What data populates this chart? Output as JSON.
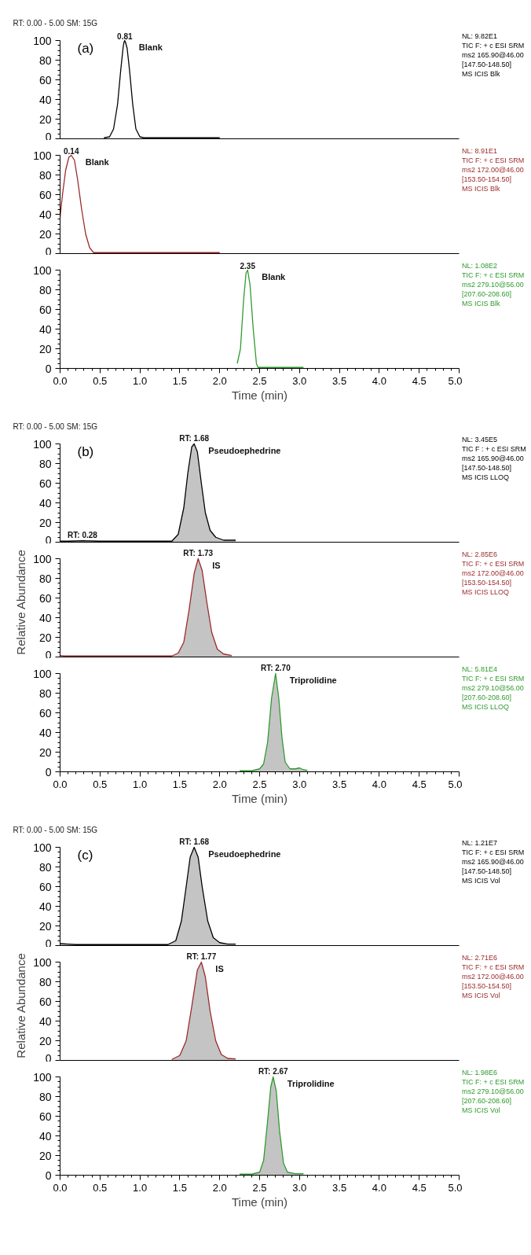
{
  "chart_data": [
    {
      "type": "line",
      "title": "RT: 0.00 - 5.00   SM: 15G",
      "subtitle": "(a)",
      "color": "#000000",
      "xlim": [
        0,
        5
      ],
      "ylim": [
        0,
        100
      ],
      "yticks": [
        0,
        20,
        40,
        60,
        80,
        100
      ],
      "tick_labels": "y",
      "x": [
        0.55,
        0.62,
        0.67,
        0.72,
        0.76,
        0.79,
        0.8,
        0.81,
        0.82,
        0.84,
        0.87,
        0.91,
        0.95,
        1.0,
        1.05,
        2.0
      ],
      "values": [
        1,
        2,
        10,
        35,
        70,
        93,
        98,
        100,
        98,
        92,
        70,
        35,
        10,
        2,
        1,
        1
      ],
      "annotations": [
        {
          "text": "0.81",
          "x": 0.81,
          "y": 100
        },
        "Blank",
        "NL: 9.82E1\nTIC F: + c ESI SRM\nms2 165.90@46.00\n[147.50-148.50]\nMS ICIS Blk"
      ]
    },
    {
      "type": "line",
      "color": "#9c2a2a",
      "xlim": [
        0,
        5
      ],
      "ylim": [
        0,
        100
      ],
      "yticks": [
        0,
        20,
        40,
        60,
        80,
        100
      ],
      "tick_labels": "y",
      "x": [
        0,
        0.03,
        0.07,
        0.11,
        0.14,
        0.18,
        0.22,
        0.27,
        0.32,
        0.37,
        0.42,
        2.0
      ],
      "values": [
        37,
        60,
        85,
        98,
        100,
        95,
        75,
        45,
        20,
        6,
        1,
        1
      ],
      "annotations": [
        {
          "text": "0.14",
          "x": 0.14,
          "y": 100
        },
        "Blank",
        "NL: 8.91E1\nTIC F: + c ESI SRM\nms2 172.00@46.00\n[153.50-154.50]\nMS ICIS Blk"
      ]
    },
    {
      "type": "line",
      "color": "#2e9b2e",
      "xlim": [
        0,
        5
      ],
      "ylim": [
        0,
        100
      ],
      "yticks": [
        0,
        20,
        40,
        60,
        80,
        100
      ],
      "xlabel": "Time (min)",
      "xticks": [
        {
          "value": 0,
          "label": "0.0"
        },
        {
          "value": 0.5,
          "label": "0.5"
        },
        {
          "value": 1,
          "label": "1.0"
        },
        {
          "value": 1.5,
          "label": "1.5"
        },
        {
          "value": 2,
          "label": "2.0"
        },
        {
          "value": 2.5,
          "label": "2.5"
        },
        {
          "value": 3,
          "label": "3.0"
        },
        {
          "value": 3.5,
          "label": "3.5"
        },
        {
          "value": 4,
          "label": "4.0"
        },
        {
          "value": 4.5,
          "label": "4.5"
        },
        {
          "value": 5,
          "label": "5.0"
        }
      ],
      "x": [
        2.22,
        2.26,
        2.3,
        2.33,
        2.35,
        2.38,
        2.42,
        2.46,
        2.48,
        3.05
      ],
      "values": [
        5,
        20,
        70,
        97,
        100,
        85,
        40,
        5,
        1,
        1
      ],
      "annotations": [
        {
          "text": "2.35",
          "x": 2.35,
          "y": 100
        },
        "Blank",
        "NL: 1.08E2\nTIC F: + c ESI SRM\nms2 279.10@56.00\n[207.60-208.60]\nMS ICIS Blk"
      ]
    },
    {
      "type": "area",
      "title": "RT: 0.00 - 5.00   SM: 15G",
      "subtitle": "(b)",
      "color": "#000000",
      "xlim": [
        0,
        5
      ],
      "ylim": [
        0,
        100
      ],
      "yticks": [
        0,
        20,
        40,
        60,
        80,
        100
      ],
      "tick_labels": "y",
      "x": [
        0,
        0.1,
        0.28,
        0.5,
        1.3,
        1.4,
        1.48,
        1.55,
        1.6,
        1.65,
        1.68,
        1.72,
        1.77,
        1.82,
        1.88,
        1.95,
        2.05,
        2.2
      ],
      "values": [
        1,
        1,
        1.5,
        1,
        1,
        1,
        8,
        35,
        70,
        97,
        100,
        92,
        60,
        30,
        12,
        5,
        2,
        2
      ],
      "annotations": [
        {
          "text": "RT: 1.68",
          "x": 1.68,
          "y": 100
        },
        {
          "text": "RT: 0.28",
          "x": 0.28,
          "y": 1.5
        },
        "Pseudoephedrine",
        "NL: 3.45E5\nTIC F : + c ESI SRM\nms2 165.90@46.00\n[147.50-148.50]\nMS ICIS LLOQ"
      ]
    },
    {
      "type": "area",
      "color": "#9c2a2a",
      "xlim": [
        0,
        5
      ],
      "ylim": [
        0,
        100
      ],
      "yticks": [
        0,
        20,
        40,
        60,
        80,
        100
      ],
      "tick_labels": "y",
      "ylabel": "Relative Abundance",
      "x": [
        0,
        0.05,
        0.3,
        1.4,
        1.48,
        1.55,
        1.62,
        1.68,
        1.73,
        1.78,
        1.84,
        1.9,
        1.97,
        2.05,
        2.15
      ],
      "values": [
        1.5,
        1,
        1,
        1,
        4,
        15,
        50,
        85,
        100,
        88,
        55,
        25,
        8,
        3,
        1.5
      ],
      "annotations": [
        {
          "text": "RT: 1.73",
          "x": 1.73,
          "y": 100
        },
        "IS",
        "NL: 2.85E6\nTIC F: + c ESI SRM\nms2 172.00@46.00\n[153.50-154.50]\nMS ICIS LLOQ"
      ]
    },
    {
      "type": "area",
      "color": "#2e9b2e",
      "xlim": [
        0,
        5
      ],
      "ylim": [
        0,
        100
      ],
      "yticks": [
        0,
        20,
        40,
        60,
        80,
        100
      ],
      "xlabel": "Time (min)",
      "xticks": [
        {
          "value": 0,
          "label": "0.0"
        },
        {
          "value": 0.5,
          "label": "0.5"
        },
        {
          "value": 1,
          "label": "1.0"
        },
        {
          "value": 1.5,
          "label": "1.5"
        },
        {
          "value": 2,
          "label": "2.0"
        },
        {
          "value": 2.5,
          "label": "2.5"
        },
        {
          "value": 3,
          "label": "3.0"
        },
        {
          "value": 3.5,
          "label": "3.5"
        },
        {
          "value": 4,
          "label": "4.0"
        },
        {
          "value": 4.5,
          "label": "4.5"
        },
        {
          "value": 5,
          "label": "5.0"
        }
      ],
      "x": [
        2.25,
        2.4,
        2.5,
        2.55,
        2.6,
        2.65,
        2.7,
        2.74,
        2.78,
        2.82,
        2.88,
        2.95,
        3.0,
        3.05,
        3.1
      ],
      "values": [
        1,
        1,
        3,
        8,
        30,
        75,
        100,
        75,
        35,
        10,
        3,
        3,
        4,
        2,
        1.5
      ],
      "annotations": [
        {
          "text": "RT: 2.70",
          "x": 2.7,
          "y": 100
        },
        "Triprolidine",
        "NL: 5.81E4\nTIC F: + c ESI SRM\nms2 279.10@56.00\n[207.60-208.60]\nMS ICIS LLOQ"
      ]
    },
    {
      "type": "area",
      "title": "RT: 0.00 - 5.00   SM: 15G",
      "subtitle": "(c)",
      "color": "#000000",
      "xlim": [
        0,
        5
      ],
      "ylim": [
        0,
        100
      ],
      "yticks": [
        0,
        20,
        40,
        60,
        80,
        100
      ],
      "tick_labels": "y",
      "x": [
        0,
        0.1,
        0.2,
        1.35,
        1.45,
        1.52,
        1.58,
        1.63,
        1.68,
        1.73,
        1.78,
        1.85,
        1.92,
        2.0,
        2.1,
        2.2
      ],
      "values": [
        2,
        1.5,
        1,
        1,
        5,
        25,
        60,
        90,
        100,
        90,
        60,
        25,
        8,
        3,
        1.5,
        1.5
      ],
      "annotations": [
        {
          "text": "RT: 1.68",
          "x": 1.68,
          "y": 100
        },
        "Pseudoephedrine",
        "NL: 1.21E7\nTIC F: + c ESI SRM\nms2 165.90@46.00\n[147.50-148.50]\nMS ICIS Vol"
      ]
    },
    {
      "type": "area",
      "color": "#9c2a2a",
      "xlim": [
        0,
        5
      ],
      "ylim": [
        0,
        100
      ],
      "yticks": [
        0,
        20,
        40,
        60,
        80,
        100
      ],
      "tick_labels": "y",
      "ylabel": "Relative Abundance",
      "x": [
        1.4,
        1.5,
        1.58,
        1.65,
        1.72,
        1.77,
        1.82,
        1.88,
        1.95,
        2.02,
        2.1,
        2.2
      ],
      "values": [
        1,
        5,
        20,
        55,
        92,
        100,
        85,
        50,
        20,
        6,
        2,
        1.5
      ],
      "annotations": [
        {
          "text": "RT: 1.77",
          "x": 1.77,
          "y": 100
        },
        "IS",
        "NL: 2.71E6\nTIC F: + c ESI SRM\nms2 172.00@46.00\n[153.50-154.50]\nMS ICIS Vol"
      ]
    },
    {
      "type": "area",
      "color": "#2e9b2e",
      "xlim": [
        0,
        5
      ],
      "ylim": [
        0,
        100
      ],
      "yticks": [
        0,
        20,
        40,
        60,
        80,
        100
      ],
      "xlabel": "Time (min)",
      "xticks": [
        {
          "value": 0,
          "label": "0.0"
        },
        {
          "value": 0.5,
          "label": "0.5"
        },
        {
          "value": 1,
          "label": "1.0"
        },
        {
          "value": 1.5,
          "label": "1.5"
        },
        {
          "value": 2,
          "label": "2.0"
        },
        {
          "value": 2.5,
          "label": "2.5"
        },
        {
          "value": 3,
          "label": "3.0"
        },
        {
          "value": 3.5,
          "label": "3.5"
        },
        {
          "value": 4,
          "label": "4.0"
        },
        {
          "value": 4.5,
          "label": "4.5"
        },
        {
          "value": 5,
          "label": "5.0"
        }
      ],
      "x": [
        2.25,
        2.4,
        2.5,
        2.55,
        2.6,
        2.64,
        2.67,
        2.71,
        2.75,
        2.8,
        2.85,
        2.95,
        3.05
      ],
      "values": [
        1,
        1,
        3,
        15,
        55,
        90,
        100,
        85,
        45,
        12,
        3,
        1.5,
        1.5
      ],
      "annotations": [
        {
          "text": "RT: 2.67",
          "x": 2.67,
          "y": 100
        },
        "Triprolidine",
        "NL: 1.98E6\nTIC F: + c ESI SRM\nms2 279.10@56.00\n[207.60-208.60]\nMS ICIS Vol"
      ]
    }
  ]
}
